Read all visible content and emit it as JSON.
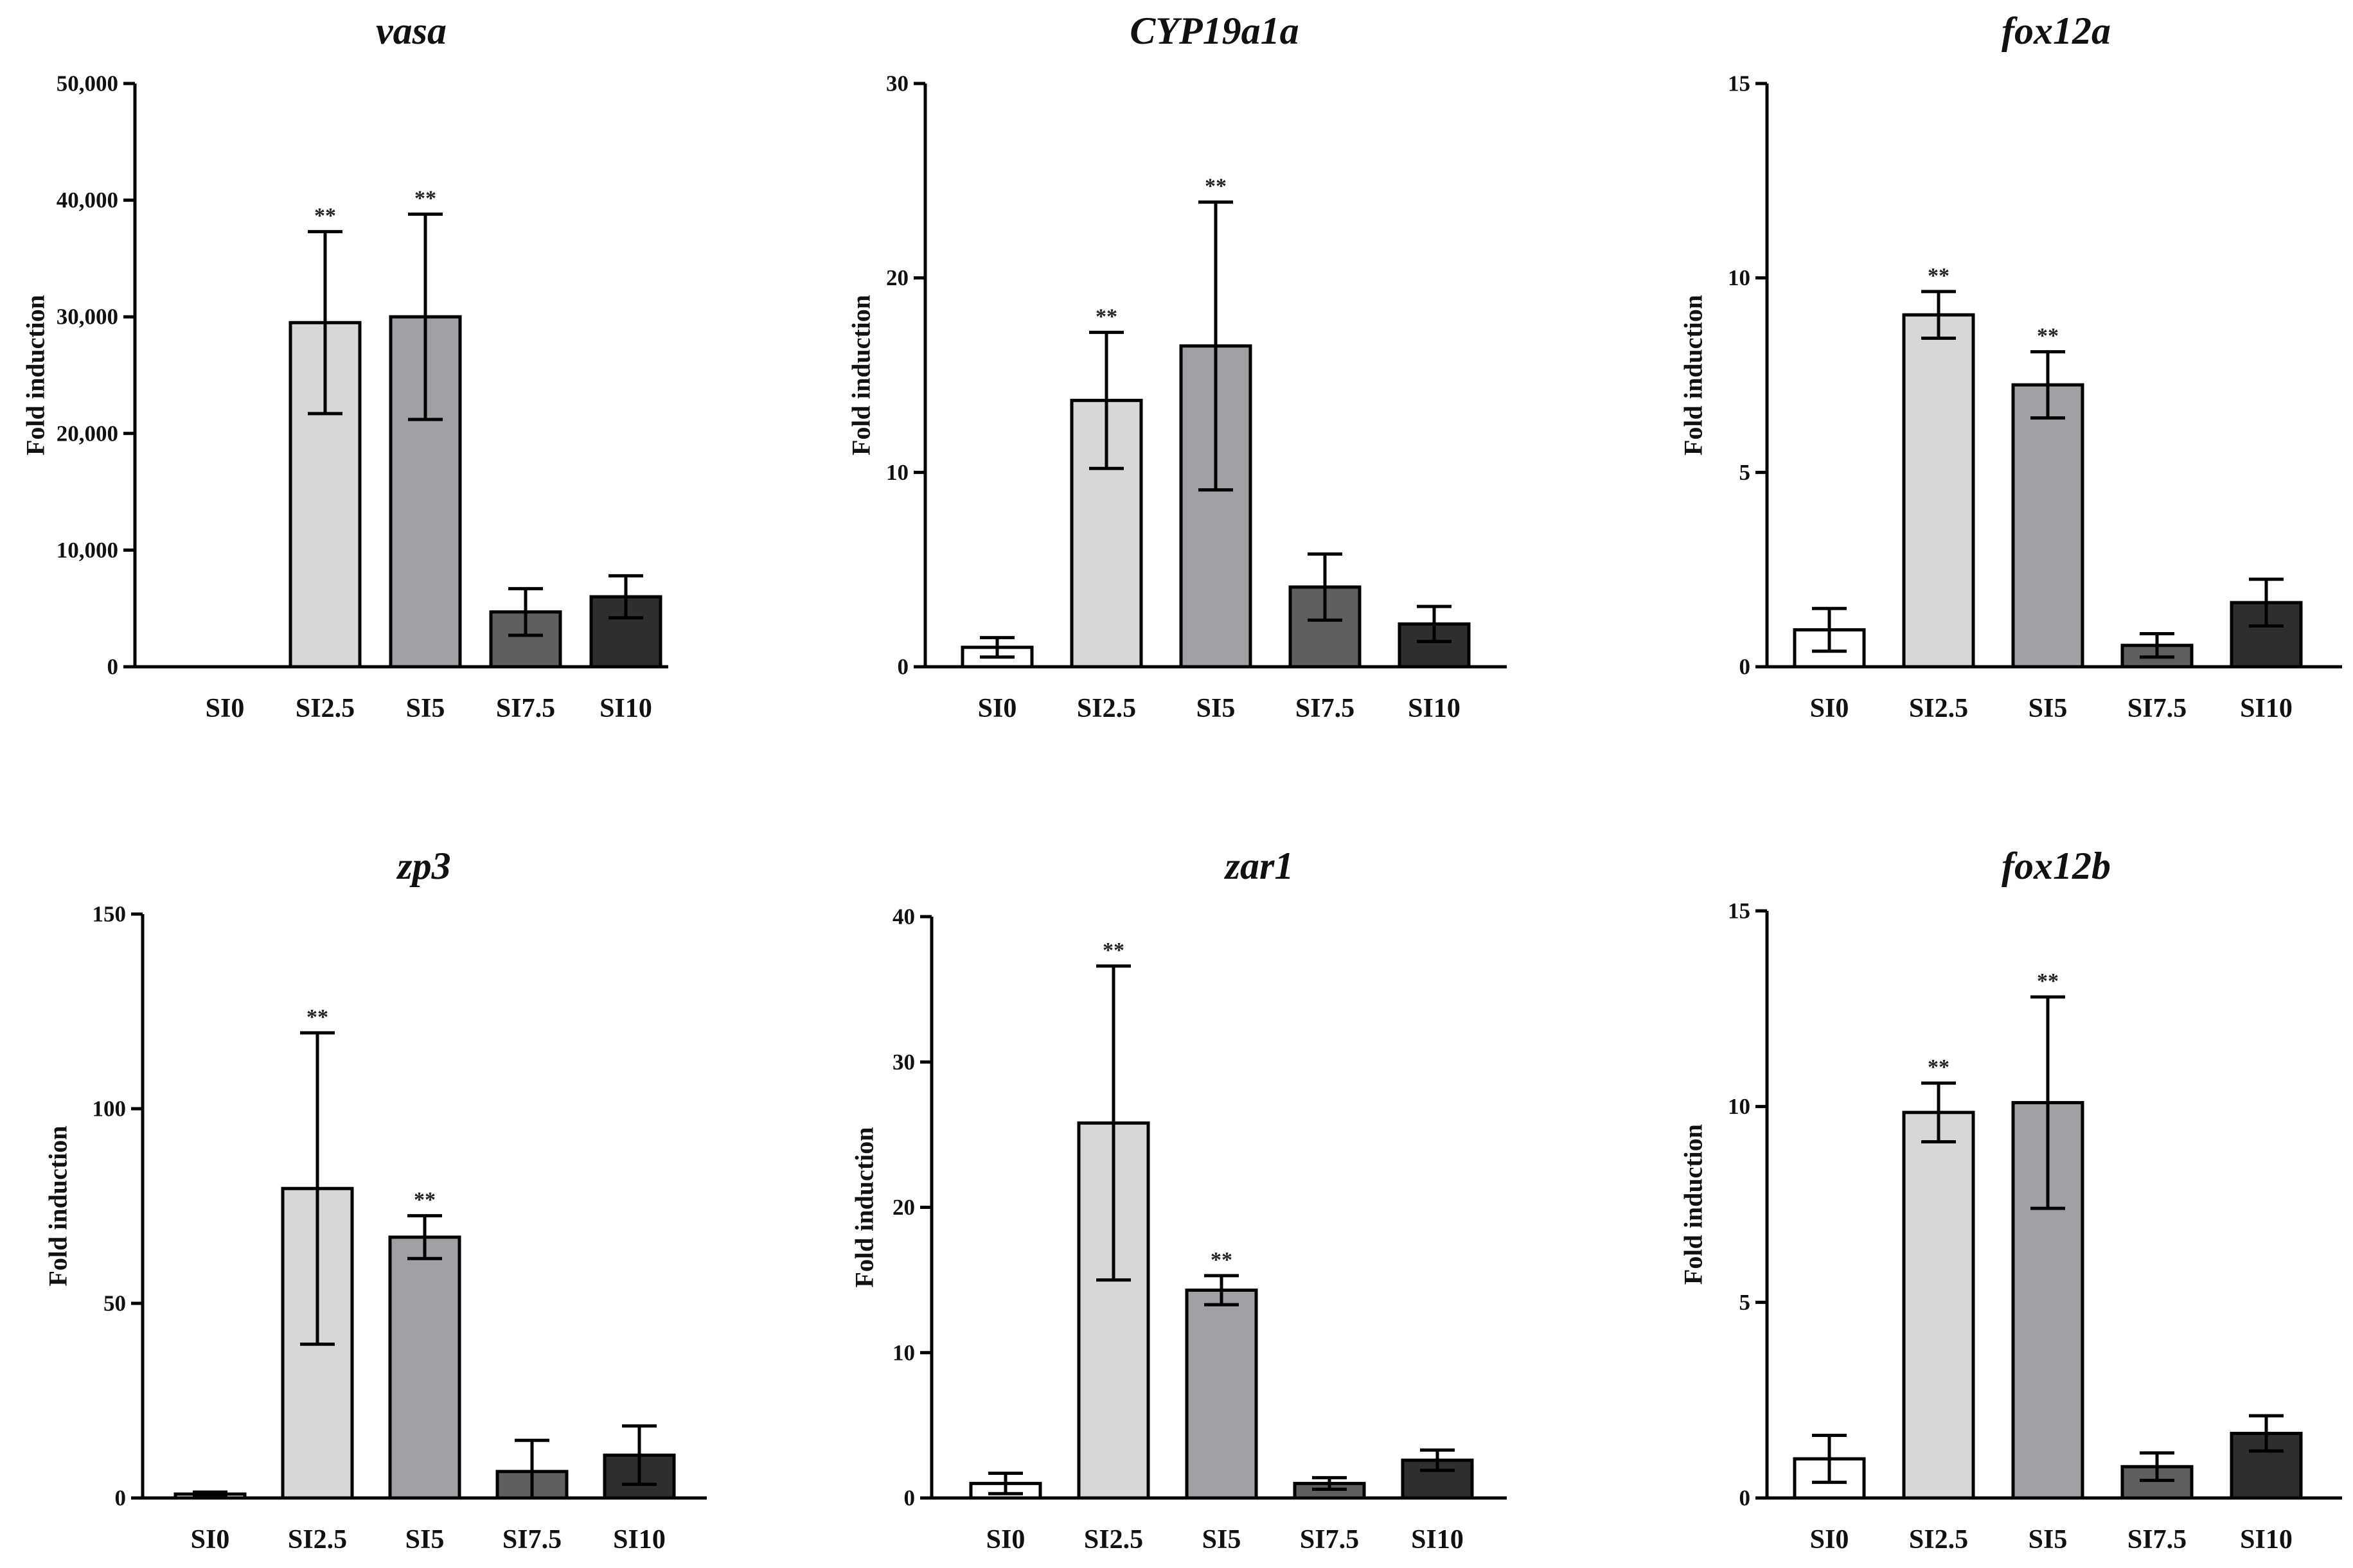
{
  "figure": {
    "category_colors": [
      "#ffffff",
      "#d7d7d7",
      "#a1a1a5",
      "#5f5f5f",
      "#2e2e2e"
    ]
  },
  "chart_data": [
    {
      "type": "bar",
      "title": "vasa",
      "xlabel": "",
      "ylabel": "Fold induction",
      "ylim": [
        0,
        50000
      ],
      "yticks": [
        0,
        10000,
        20000,
        30000,
        40000,
        50000
      ],
      "ytick_labels": [
        "0",
        "10,000",
        "20,000",
        "30,000",
        "40,000",
        "50,000"
      ],
      "categories": [
        "SI0",
        "SI2.5",
        "SI5",
        "SI7.5",
        "SI10"
      ],
      "values": [
        0,
        29500,
        30000,
        4700,
        6000
      ],
      "errors": [
        0,
        7800,
        8800,
        2000,
        1800
      ],
      "significance": [
        "",
        "**",
        "**",
        "",
        ""
      ],
      "grid": false
    },
    {
      "type": "bar",
      "title": "CYP19a1a",
      "xlabel": "",
      "ylabel": "Fold induction",
      "ylim": [
        0,
        30
      ],
      "yticks": [
        0,
        10,
        20,
        30
      ],
      "ytick_labels": [
        "0",
        "10",
        "20",
        "30"
      ],
      "categories": [
        "SI0",
        "SI2.5",
        "SI5",
        "SI7.5",
        "SI10"
      ],
      "values": [
        1.0,
        13.7,
        16.5,
        4.1,
        2.2
      ],
      "errors": [
        0.5,
        3.5,
        7.4,
        1.7,
        0.9
      ],
      "significance": [
        "",
        "**",
        "**",
        "",
        ""
      ],
      "grid": false
    },
    {
      "type": "bar",
      "title": "fox12a",
      "xlabel": "",
      "ylabel": "Fold induction",
      "ylim": [
        0,
        15
      ],
      "yticks": [
        0,
        5,
        10,
        15
      ],
      "ytick_labels": [
        "0",
        "5",
        "10",
        "15"
      ],
      "categories": [
        "SI0",
        "SI2.5",
        "SI5",
        "SI7.5",
        "SI10"
      ],
      "values": [
        0.95,
        9.05,
        7.25,
        0.55,
        1.65
      ],
      "errors": [
        0.55,
        0.6,
        0.85,
        0.3,
        0.6
      ],
      "significance": [
        "",
        "**",
        "**",
        "",
        ""
      ],
      "grid": false
    },
    {
      "type": "bar",
      "title": "zp3",
      "xlabel": "",
      "ylabel": "Fold induction",
      "ylim": [
        0,
        150
      ],
      "yticks": [
        0,
        50,
        100,
        150
      ],
      "ytick_labels": [
        "0",
        "50",
        "100",
        "150"
      ],
      "categories": [
        "SI0",
        "SI2.5",
        "SI5",
        "SI7.5",
        "SI10"
      ],
      "values": [
        1,
        79.5,
        67,
        6.8,
        11
      ],
      "errors": [
        0.5,
        40,
        5.5,
        8,
        7.5
      ],
      "significance": [
        "",
        "**",
        "**",
        "",
        ""
      ],
      "grid": false
    },
    {
      "type": "bar",
      "title": "zar1",
      "xlabel": "",
      "ylabel": "Fold induction",
      "ylim": [
        0,
        40
      ],
      "yticks": [
        0,
        10,
        20,
        30,
        40
      ],
      "ytick_labels": [
        "0",
        "10",
        "20",
        "30",
        "40"
      ],
      "categories": [
        "SI0",
        "SI2.5",
        "SI5",
        "SI7.5",
        "SI10"
      ],
      "values": [
        1.0,
        25.8,
        14.3,
        1.0,
        2.6
      ],
      "errors": [
        0.7,
        10.8,
        1.0,
        0.4,
        0.7
      ],
      "significance": [
        "",
        "**",
        "**",
        "",
        ""
      ],
      "grid": false
    },
    {
      "type": "bar",
      "title": "fox12b",
      "xlabel": "",
      "ylabel": "Fold induction",
      "ylim": [
        0,
        15
      ],
      "yticks": [
        0,
        5,
        10,
        15
      ],
      "ytick_labels": [
        "0",
        "5",
        "10",
        "15"
      ],
      "categories": [
        "SI0",
        "SI2.5",
        "SI5",
        "SI7.5",
        "SI10"
      ],
      "values": [
        1.0,
        9.85,
        10.1,
        0.8,
        1.65
      ],
      "errors": [
        0.6,
        0.75,
        2.7,
        0.35,
        0.45
      ],
      "significance": [
        "",
        "**",
        "**",
        "",
        ""
      ],
      "grid": false
    }
  ]
}
